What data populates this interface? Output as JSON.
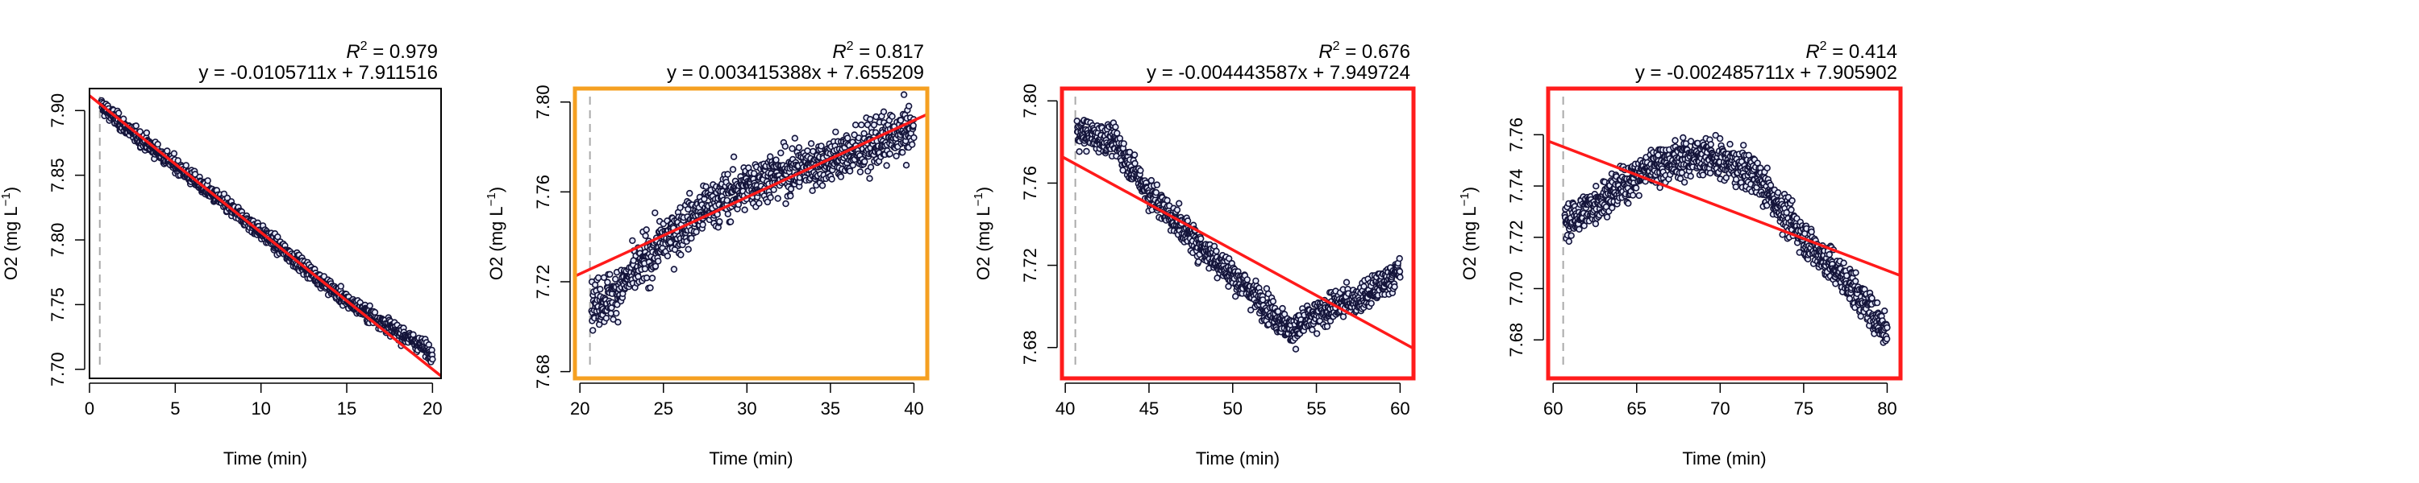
{
  "chart_data": [
    {
      "type": "scatter",
      "r2_prefix": "R",
      "r2_sup": "2",
      "r2_text": " = 0.979",
      "equation": "y = -0.0105711x + 7.911516",
      "xlabel": "Time (min)",
      "ylabel_main": "O2 (mg L",
      "ylabel_sup": "−1",
      "ylabel_end": ")",
      "xlim": [
        0,
        20.5
      ],
      "ylim": [
        7.693,
        7.917
      ],
      "xticks": [
        "0",
        "5",
        "10",
        "15",
        "20"
      ],
      "yticks": [
        "7.70",
        "7.75",
        "7.80",
        "7.85",
        "7.90"
      ],
      "border_color": "#000000",
      "fit": {
        "slope": -0.0105711,
        "intercept": 7.911516
      },
      "dashed_line_x": 0.6,
      "noise": 0.005,
      "curve": [
        [
          0.6,
          7.905
        ],
        [
          2,
          7.888
        ],
        [
          5,
          7.858
        ],
        [
          10,
          7.806
        ],
        [
          15,
          7.753
        ],
        [
          20,
          7.713
        ]
      ]
    },
    {
      "type": "scatter",
      "r2_prefix": "R",
      "r2_sup": "2",
      "r2_text": " = 0.817",
      "equation": "y = 0.003415388x + 7.655209",
      "xlabel": "Time (min)",
      "ylabel_main": "O2 (mg L",
      "ylabel_sup": "−1",
      "ylabel_end": ")",
      "xlim": [
        19.7,
        40.8
      ],
      "ylim": [
        7.677,
        7.806
      ],
      "xticks": [
        "20",
        "25",
        "30",
        "35",
        "40"
      ],
      "yticks": [
        "7.68",
        "7.72",
        "7.76",
        "7.80"
      ],
      "border_color": "#f5a021",
      "fit": {
        "slope": 0.003415388,
        "intercept": 7.655209
      },
      "dashed_line_x": 20.6,
      "noise": 0.009,
      "curve": [
        [
          20.7,
          7.71
        ],
        [
          22,
          7.714
        ],
        [
          25,
          7.738
        ],
        [
          28,
          7.755
        ],
        [
          31,
          7.766
        ],
        [
          34,
          7.772
        ],
        [
          37,
          7.779
        ],
        [
          40,
          7.788
        ]
      ]
    },
    {
      "type": "scatter",
      "r2_prefix": "R",
      "r2_sup": "2",
      "r2_text": " = 0.676",
      "equation": "y = -0.004443587x + 7.949724",
      "xlabel": "Time (min)",
      "ylabel_main": "O2 (mg L",
      "ylabel_sup": "−1",
      "ylabel_end": ")",
      "xlim": [
        39.8,
        60.8
      ],
      "ylim": [
        7.665,
        7.806
      ],
      "xticks": [
        "40",
        "45",
        "50",
        "55",
        "60"
      ],
      "yticks": [
        "7.68",
        "7.72",
        "7.76",
        "7.80"
      ],
      "border_color": "#ff1c1c",
      "fit": {
        "slope": -0.004443587,
        "intercept": 7.949724
      },
      "dashed_line_x": 40.6,
      "noise": 0.006,
      "curve": [
        [
          40.7,
          7.785
        ],
        [
          43,
          7.78
        ],
        [
          45,
          7.755
        ],
        [
          48,
          7.73
        ],
        [
          51,
          7.708
        ],
        [
          53.5,
          7.688
        ],
        [
          56,
          7.7
        ],
        [
          58,
          7.705
        ],
        [
          60,
          7.718
        ]
      ]
    },
    {
      "type": "scatter",
      "r2_prefix": "R",
      "r2_sup": "2",
      "r2_text": " = 0.414",
      "equation": "y = -0.002485711x + 7.905902",
      "xlabel": "Time (min)",
      "ylabel_main": "O2 (mg L",
      "ylabel_sup": "−1",
      "ylabel_end": ")",
      "xlim": [
        59.7,
        80.8
      ],
      "ylim": [
        7.665,
        7.778
      ],
      "xticks": [
        "60",
        "65",
        "70",
        "75",
        "80"
      ],
      "yticks": [
        "7.68",
        "7.70",
        "7.72",
        "7.74",
        "7.76"
      ],
      "border_color": "#ff1c1c",
      "fit": {
        "slope": -0.002485711,
        "intercept": 7.905902
      },
      "dashed_line_x": 60.6,
      "noise": 0.006,
      "curve": [
        [
          60.7,
          7.725
        ],
        [
          63,
          7.735
        ],
        [
          66,
          7.748
        ],
        [
          69,
          7.752
        ],
        [
          72,
          7.745
        ],
        [
          75,
          7.72
        ],
        [
          78,
          7.7
        ],
        [
          80,
          7.683
        ]
      ]
    }
  ]
}
